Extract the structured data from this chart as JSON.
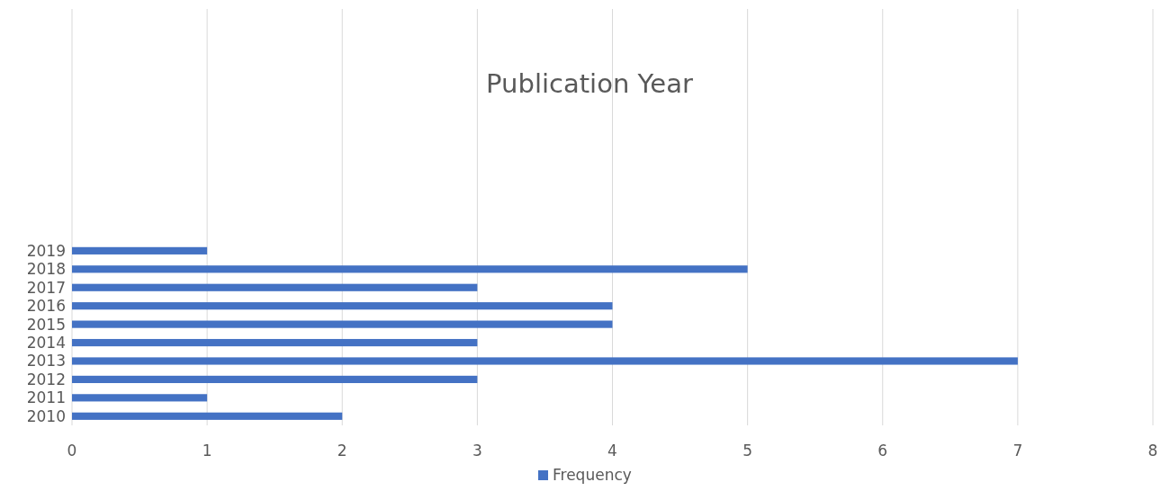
{
  "chart_data": {
    "type": "bar",
    "orientation": "horizontal",
    "title": "Publication Year",
    "categories": [
      null,
      null,
      null,
      null,
      null,
      null,
      null,
      null,
      null,
      null,
      null,
      null,
      null,
      "2019",
      "2018",
      "2017",
      "2016",
      "2015",
      "2014",
      "2013",
      "2012",
      "2011",
      "2010"
    ],
    "series": [
      {
        "name": "Frequency",
        "color": "#4472c4",
        "values": [
          null,
          null,
          null,
          null,
          null,
          null,
          null,
          null,
          null,
          null,
          null,
          null,
          null,
          1,
          5,
          3,
          4,
          4,
          3,
          7,
          3,
          1,
          2
        ]
      }
    ],
    "xlim": [
      0,
      8
    ],
    "xticks": [
      0,
      1,
      2,
      3,
      4,
      5,
      6,
      7,
      8
    ],
    "grid": "x",
    "legend": "bottom"
  }
}
